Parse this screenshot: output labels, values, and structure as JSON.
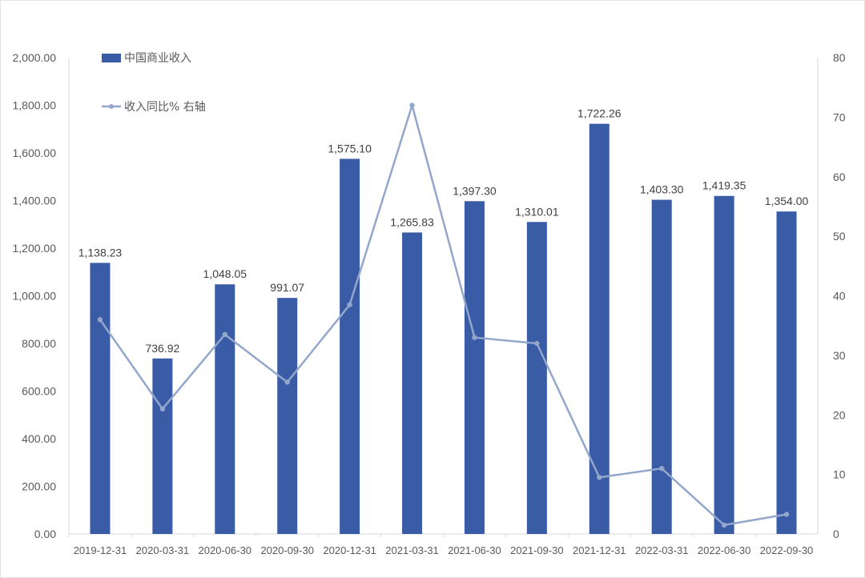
{
  "chart_data": {
    "type": "bar",
    "categories": [
      "2019-12-31",
      "2020-03-31",
      "2020-06-30",
      "2020-09-30",
      "2020-12-31",
      "2021-03-31",
      "2021-06-30",
      "2021-09-30",
      "2021-12-31",
      "2022-03-31",
      "2022-06-30",
      "2022-09-30"
    ],
    "series": [
      {
        "name": "中国商业收入",
        "type": "bar",
        "axis": "left",
        "color": "#3a5ba6",
        "values": [
          1138.23,
          736.92,
          1048.05,
          991.07,
          1575.1,
          1265.83,
          1397.3,
          1310.01,
          1722.26,
          1403.3,
          1419.35,
          1354.0
        ],
        "labels": [
          "1,138.23",
          "736.92",
          "1,048.05",
          "991.07",
          "1,575.10",
          "1,265.83",
          "1,397.30",
          "1,310.01",
          "1,722.26",
          "1,403.30",
          "1,419.35",
          "1,354.00"
        ]
      },
      {
        "name": "收入同比% 右轴",
        "type": "line",
        "axis": "right",
        "color": "#93a6cc",
        "values": [
          36.0,
          21.0,
          33.5,
          25.5,
          38.5,
          72.0,
          33.0,
          32.0,
          9.5,
          11.0,
          1.5,
          3.3
        ]
      }
    ],
    "y_left": {
      "lim": [
        0,
        2000
      ],
      "ticks": [
        0,
        200,
        400,
        600,
        800,
        1000,
        1200,
        1400,
        1600,
        1800,
        2000
      ],
      "tick_labels": [
        "0.00",
        "200.00",
        "400.00",
        "600.00",
        "800.00",
        "1,000.00",
        "1,200.00",
        "1,400.00",
        "1,600.00",
        "1,800.00",
        "2,000.00"
      ]
    },
    "y_right": {
      "lim": [
        0,
        80
      ],
      "ticks": [
        0,
        10,
        20,
        30,
        40,
        50,
        60,
        70,
        80
      ],
      "tick_labels": [
        "0",
        "10",
        "20",
        "30",
        "40",
        "50",
        "60",
        "70",
        "80"
      ]
    },
    "grid": false,
    "legend_position": "top-left",
    "title": "",
    "xlabel": "",
    "ylabel": ""
  }
}
